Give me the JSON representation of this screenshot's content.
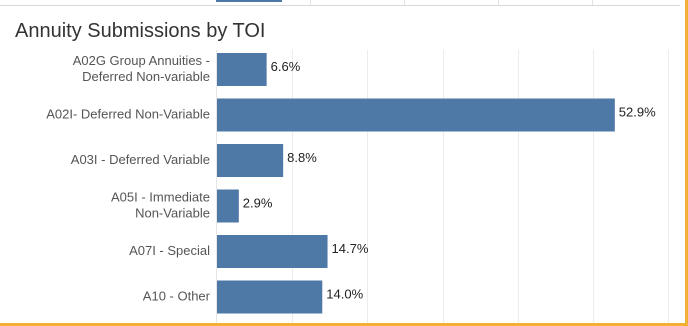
{
  "chart_data": {
    "type": "bar",
    "orientation": "horizontal",
    "title": "Annuity Submissions by TOI",
    "categories": [
      [
        "A02G Group Annuities -",
        "Deferred Non-variable"
      ],
      [
        "A02I- Deferred Non-Variable"
      ],
      [
        "A03I - Deferred Variable"
      ],
      [
        "A05I - Immediate",
        "Non-Variable"
      ],
      [
        "A07I - Special"
      ],
      [
        "A10 - Other"
      ]
    ],
    "values": [
      6.6,
      52.9,
      8.8,
      2.9,
      14.7,
      14.0
    ],
    "value_labels": [
      "6.6%",
      "52.9%",
      "8.8%",
      "2.9%",
      "14.7%",
      "14.0%"
    ],
    "xlim": [
      0,
      60
    ],
    "grid": true,
    "colors": {
      "bar": "#4e79a7",
      "grid": "#ececec",
      "frame": "#f2b134"
    }
  }
}
